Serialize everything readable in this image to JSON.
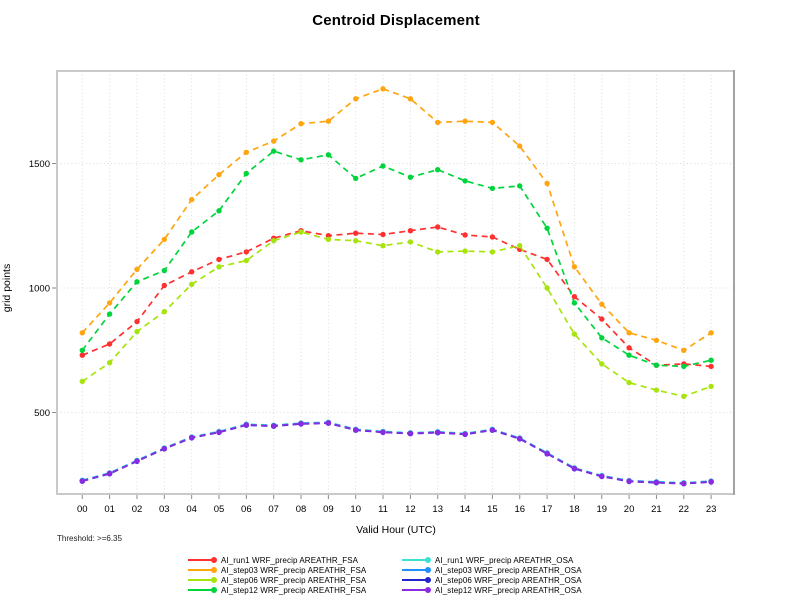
{
  "title": "Centroid Displacement",
  "threshold_note": "Threshold: >=6.35",
  "chart_data": {
    "type": "line",
    "title": "Centroid Displacement",
    "xlabel": "Valid Hour (UTC)",
    "ylabel": "grid points",
    "x_categories": [
      "00",
      "01",
      "02",
      "03",
      "04",
      "05",
      "06",
      "07",
      "08",
      "09",
      "10",
      "11",
      "12",
      "13",
      "14",
      "15",
      "16",
      "17",
      "18",
      "19",
      "20",
      "21",
      "22",
      "23"
    ],
    "yticks": [
      500,
      1000,
      1500
    ],
    "ylim": [
      150,
      1870
    ],
    "grid": "dotted",
    "line_style": "dashed-with-dot-markers",
    "legend_position": "bottom-two-columns",
    "frame_color": "#c9c9c9",
    "gridline_color": "#dbdbdb",
    "series": [
      {
        "name": "AI_run1 WRF_precip AREATHR_FSA",
        "color": "#ff3030",
        "values": [
          730,
          775,
          865,
          1010,
          1065,
          1115,
          1145,
          1200,
          1230,
          1210,
          1220,
          1215,
          1230,
          1245,
          1213,
          1205,
          1155,
          1115,
          965,
          875,
          760,
          690,
          695,
          685
        ]
      },
      {
        "name": "AI_step03 WRF_precip AREATHR_FSA",
        "color": "#ffa510",
        "values": [
          820,
          940,
          1075,
          1195,
          1355,
          1455,
          1545,
          1590,
          1660,
          1670,
          1760,
          1800,
          1760,
          1665,
          1670,
          1665,
          1570,
          1420,
          1085,
          935,
          820,
          790,
          750,
          820
        ]
      },
      {
        "name": "AI_step06 WRF_precip AREATHR_FSA",
        "color": "#a6e40c",
        "values": [
          625,
          700,
          825,
          905,
          1015,
          1085,
          1110,
          1190,
          1225,
          1195,
          1190,
          1170,
          1185,
          1145,
          1148,
          1145,
          1170,
          1000,
          815,
          695,
          620,
          590,
          565,
          605
        ]
      },
      {
        "name": "AI_step12 WRF_precip AREATHR_FSA",
        "color": "#00d43c",
        "values": [
          750,
          895,
          1025,
          1070,
          1225,
          1310,
          1460,
          1550,
          1515,
          1535,
          1440,
          1490,
          1445,
          1475,
          1430,
          1400,
          1410,
          1240,
          940,
          800,
          730,
          690,
          685,
          710
        ]
      },
      {
        "name": "AI_run1 WRF_precip AREATHR_OSA",
        "color": "#40e0d0",
        "values": [
          228,
          258,
          308,
          358,
          402,
          424,
          453,
          449,
          458,
          461,
          433,
          424,
          419,
          423,
          416,
          433,
          398,
          338,
          278,
          247,
          227,
          222,
          218,
          225
        ]
      },
      {
        "name": "AI_step03 WRF_precip AREATHR_OSA",
        "color": "#1e90ff",
        "values": [
          226,
          256,
          306,
          356,
          400,
          422,
          451,
          447,
          456,
          459,
          431,
          422,
          417,
          421,
          414,
          431,
          396,
          336,
          276,
          245,
          225,
          220,
          216,
          223
        ]
      },
      {
        "name": "AI_step06 WRF_precip AREATHR_OSA",
        "color": "#2424cc",
        "values": [
          224,
          254,
          304,
          354,
          398,
          420,
          449,
          445,
          454,
          457,
          429,
          420,
          415,
          419,
          412,
          429,
          394,
          334,
          274,
          243,
          223,
          218,
          214,
          221
        ]
      },
      {
        "name": "AI_step12 WRF_precip AREATHR_OSA",
        "color": "#8a2be2",
        "values": [
          225,
          255,
          305,
          355,
          399,
          421,
          450,
          446,
          455,
          458,
          430,
          421,
          416,
          420,
          413,
          430,
          395,
          335,
          275,
          244,
          224,
          219,
          215,
          222
        ]
      }
    ]
  }
}
